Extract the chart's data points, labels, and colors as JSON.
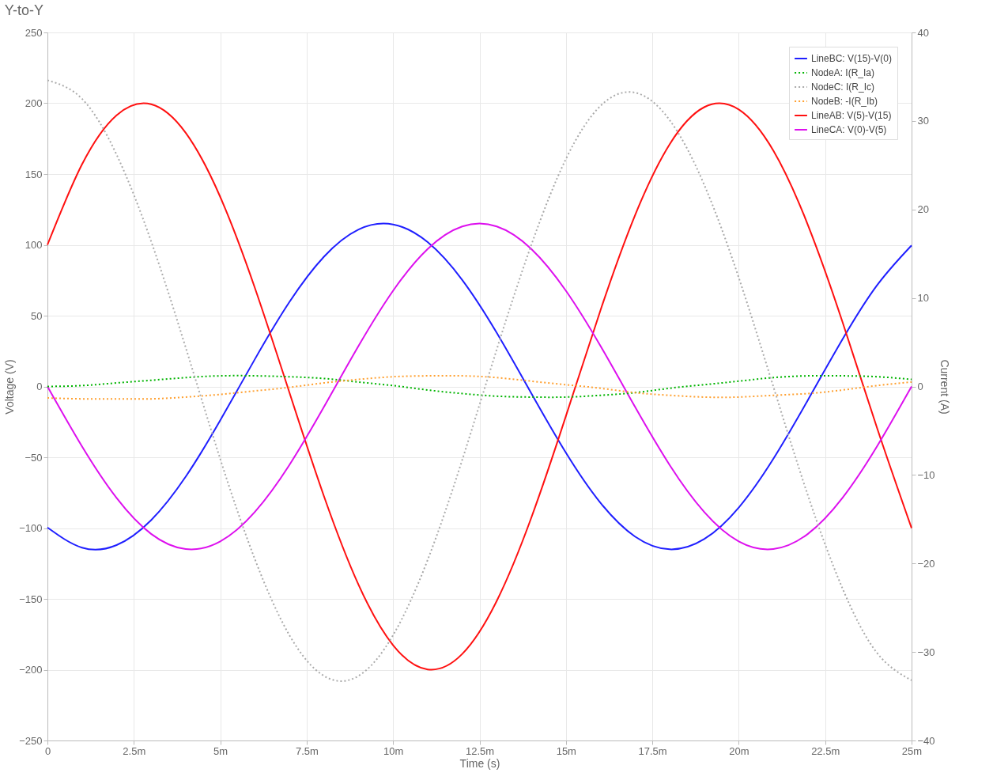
{
  "chart_data": {
    "type": "line",
    "title": "Y-to-Y",
    "xlabel": "Time (s)",
    "ylabel": "Voltage (V)",
    "y2label": "Current (A)",
    "x": [
      0,
      1,
      2,
      3,
      4,
      5,
      6,
      7,
      8,
      9,
      10,
      11,
      12,
      13,
      14,
      15,
      16,
      17,
      18,
      19,
      20,
      21,
      22,
      23,
      24,
      25
    ],
    "xlim": [
      0,
      25
    ],
    "xticks": [
      0,
      {
        "value": 2.5,
        "label": "2.5m"
      },
      {
        "value": 5,
        "label": "5m"
      },
      {
        "value": 7.5,
        "label": "7.5m"
      },
      {
        "value": 10,
        "label": "10m"
      },
      {
        "value": 12.5,
        "label": "12.5m"
      },
      {
        "value": 15,
        "label": "15m"
      },
      {
        "value": 17.5,
        "label": "17.5m"
      },
      {
        "value": 20,
        "label": "20m"
      },
      {
        "value": 22.5,
        "label": "22.5m"
      },
      {
        "value": 25,
        "label": "25m"
      }
    ],
    "ylim": [
      -250,
      250
    ],
    "yticks": [
      -250,
      -200,
      -150,
      -100,
      -50,
      0,
      50,
      100,
      150,
      200,
      250
    ],
    "y2lim": [
      -40,
      40
    ],
    "y2ticks": [
      -40,
      -30,
      -20,
      -10,
      0,
      10,
      20,
      30,
      40
    ],
    "grid": true,
    "legend": "top right",
    "series": [
      {
        "name": "LineBC: V(15)-V(0)",
        "color": "#1f1fff",
        "line_style": "solid",
        "values": [
          -99.6,
          -113.8,
          -112.0,
          -94.4,
          -63.7,
          -23.9,
          19.2,
          59.6,
          91.6,
          110.8,
          114.4,
          101.9,
          75.2,
          37.8,
          -4.9,
          -46.8,
          -82.2,
          -106.0,
          -115.0,
          -107.8,
          -85.5,
          -51.1,
          -9.6,
          33.2,
          71.4,
          99.6
        ]
      },
      {
        "name": "NodeA: I(R_Ia)",
        "color": "#00b400",
        "line_style": "dotted",
        "axis": "y2",
        "values": [
          0,
          0.1,
          0.4,
          0.7,
          1.0,
          1.2,
          1.2,
          1.1,
          0.9,
          0.5,
          0.1,
          -0.4,
          -0.8,
          -1.1,
          -1.2,
          -1.2,
          -1.0,
          -0.7,
          -0.2,
          0.2,
          0.6,
          1.0,
          1.2,
          1.2,
          1.1,
          0.8
        ]
      },
      {
        "name": "NodeC: I(R_Ic)",
        "color": "#aaaaaa",
        "line_style": "dotted",
        "axis": "y2",
        "values": [
          34.6,
          32.5,
          26.2,
          16.4,
          4.4,
          -8.2,
          -19.5,
          -28.1,
          -32.7,
          -32.7,
          -28.1,
          -19.6,
          -8.3,
          4.2,
          16.0,
          25.7,
          31.7,
          33.2,
          30.1,
          22.8,
          12.3,
          0,
          -12.3,
          -22.8,
          -30.1,
          -33.2
        ]
      },
      {
        "name": "NodeB: -I(R_Ib)",
        "color": "#ffa030",
        "line_style": "dotted",
        "axis": "y2",
        "values": [
          -1.3,
          -1.4,
          -1.4,
          -1.4,
          -1.2,
          -0.9,
          -0.5,
          -0.1,
          0.4,
          0.8,
          1.1,
          1.2,
          1.2,
          1.0,
          0.6,
          0.2,
          -0.2,
          -0.7,
          -1.0,
          -1.2,
          -1.2,
          -1.0,
          -0.8,
          -0.4,
          0.1,
          0.5
        ]
      },
      {
        "name": "LineAB: V(5)-V(15)",
        "color": "#ff1010",
        "line_style": "solid",
        "values": [
          100,
          156.8,
          191.5,
          199.3,
          179.1,
          133.8,
          69.7,
          -4.2,
          -77.5,
          -140.0,
          -182.7,
          -199.8,
          -188.9,
          -151.4,
          -92.6,
          -20.9,
          53.8,
          120.9,
          171.0,
          197.2,
          195.6,
          166.6,
          114.1,
          45.7,
          -29.2,
          -100
        ]
      },
      {
        "name": "LineCA: V(0)-V(5)",
        "color": "#dd10ee",
        "line_style": "solid",
        "values": [
          0,
          -42.3,
          -78.7,
          -104.1,
          -114.8,
          -109.4,
          -88.6,
          -55.4,
          -14.4,
          28.6,
          67.6,
          97.1,
          113.0,
          113.0,
          97.1,
          67.6,
          28.6,
          -14.4,
          -55.4,
          -88.6,
          -109.4,
          -114.8,
          -104.1,
          -78.7,
          -42.3,
          0
        ]
      }
    ]
  }
}
